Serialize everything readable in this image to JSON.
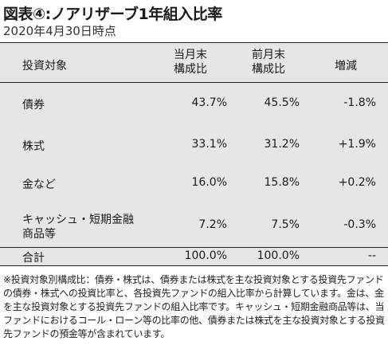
{
  "title": "図表④:ノアリザーブ1年組入比率",
  "subtitle": "2020年4月30日時点",
  "table": {
    "headers": {
      "category": "投資対象",
      "current_line1": "当月末",
      "current_line2": "構成比",
      "previous_line1": "前月末",
      "previous_line2": "構成比",
      "change": "増減"
    },
    "rows": [
      {
        "name": "債券",
        "current": "43.7%",
        "previous": "45.5%",
        "change": "-1.8%"
      },
      {
        "name": "株式",
        "current": "33.1%",
        "previous": "31.2%",
        "change": "+1.9%"
      },
      {
        "name": "金など",
        "current": "16.0%",
        "previous": "15.8%",
        "change": "+0.2%"
      },
      {
        "name_line1": "キャッシュ・短期金融",
        "name_line2": "商品等",
        "current": "7.2%",
        "previous": "7.5%",
        "change": "-0.3%"
      }
    ],
    "total": {
      "name": "合計",
      "current": "100.0%",
      "previous": "100.0%",
      "change": "--"
    }
  },
  "footnote": "※投資対象別構成比：債券・株式は、債券または株式を主な投資対象とする投資先ファンドの債券・株式への投資比率と、各投資先ファンドの組入比率から計算しています。金は、金を主な投資対象とする投資先ファンドの組入比率です。キャッシュ・短期金融商品等は、当ファンドにおけるコール・ローン等の比率の他、債券または株式を主な投資対象とする投資先ファンドの預金等が含まれています。",
  "colors": {
    "table_bg": "#e6e6e6",
    "rule": "#222222",
    "text": "#1a1a1a"
  }
}
